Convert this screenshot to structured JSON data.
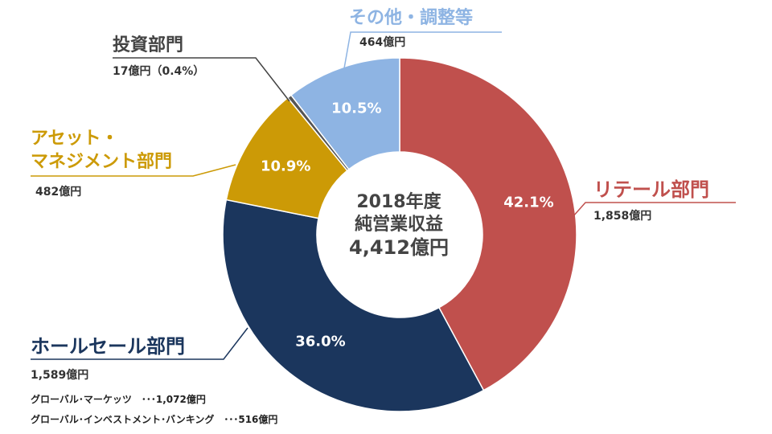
{
  "colors": {
    "retail": "#c0504d",
    "wholesale": "#1b365d",
    "asset": "#cc9a06",
    "investment": "#555555",
    "other": "#8eb4e3"
  },
  "center": {
    "line1": "2018年度",
    "line2": "純営業収益",
    "line3": "4,412億円"
  },
  "chart_data": {
    "type": "pie",
    "style": "donut",
    "title": "2018年度 純営業収益 4,412億円",
    "slices": [
      {
        "label": "リテール部門",
        "amount": "1,858億円",
        "value": 1858,
        "percent": 42.1,
        "percent_label": "42.1%",
        "color": "#c0504d"
      },
      {
        "label": "ホールセール部門",
        "amount": "1,589億円",
        "value": 1589,
        "percent": 36.0,
        "percent_label": "36.0%",
        "color": "#1b365d"
      },
      {
        "label": "アセット・マネジメント部門",
        "amount": "482億円",
        "value": 482,
        "percent": 10.9,
        "percent_label": "10.9%",
        "color": "#cc9a06"
      },
      {
        "label": "投資部門",
        "amount": "17億円（0.4%）",
        "value": 17,
        "percent": 0.4,
        "percent_label": "",
        "color": "#555555"
      },
      {
        "label": "その他・調整等",
        "amount": "464億円",
        "value": 464,
        "percent": 10.5,
        "percent_label": "10.5%",
        "color": "#8eb4e3"
      }
    ]
  },
  "labels": {
    "retail": {
      "name": "リテール部門",
      "amount": "1,858億円"
    },
    "wholesale": {
      "name": "ホールセール部門",
      "amount": "1,589億円",
      "breakdown": [
        "グローバル･マーケッツ　･･･1,072億円",
        "グローバル･インベストメント･バンキング　･･･516億円"
      ]
    },
    "asset": {
      "name_line1": "アセット・",
      "name_line2": "マネジメント部門",
      "amount": "482億円"
    },
    "investment": {
      "name": "投資部門",
      "amount": "17億円（0.4%）"
    },
    "other": {
      "name": "その他・調整等",
      "amount": "464億円"
    }
  }
}
